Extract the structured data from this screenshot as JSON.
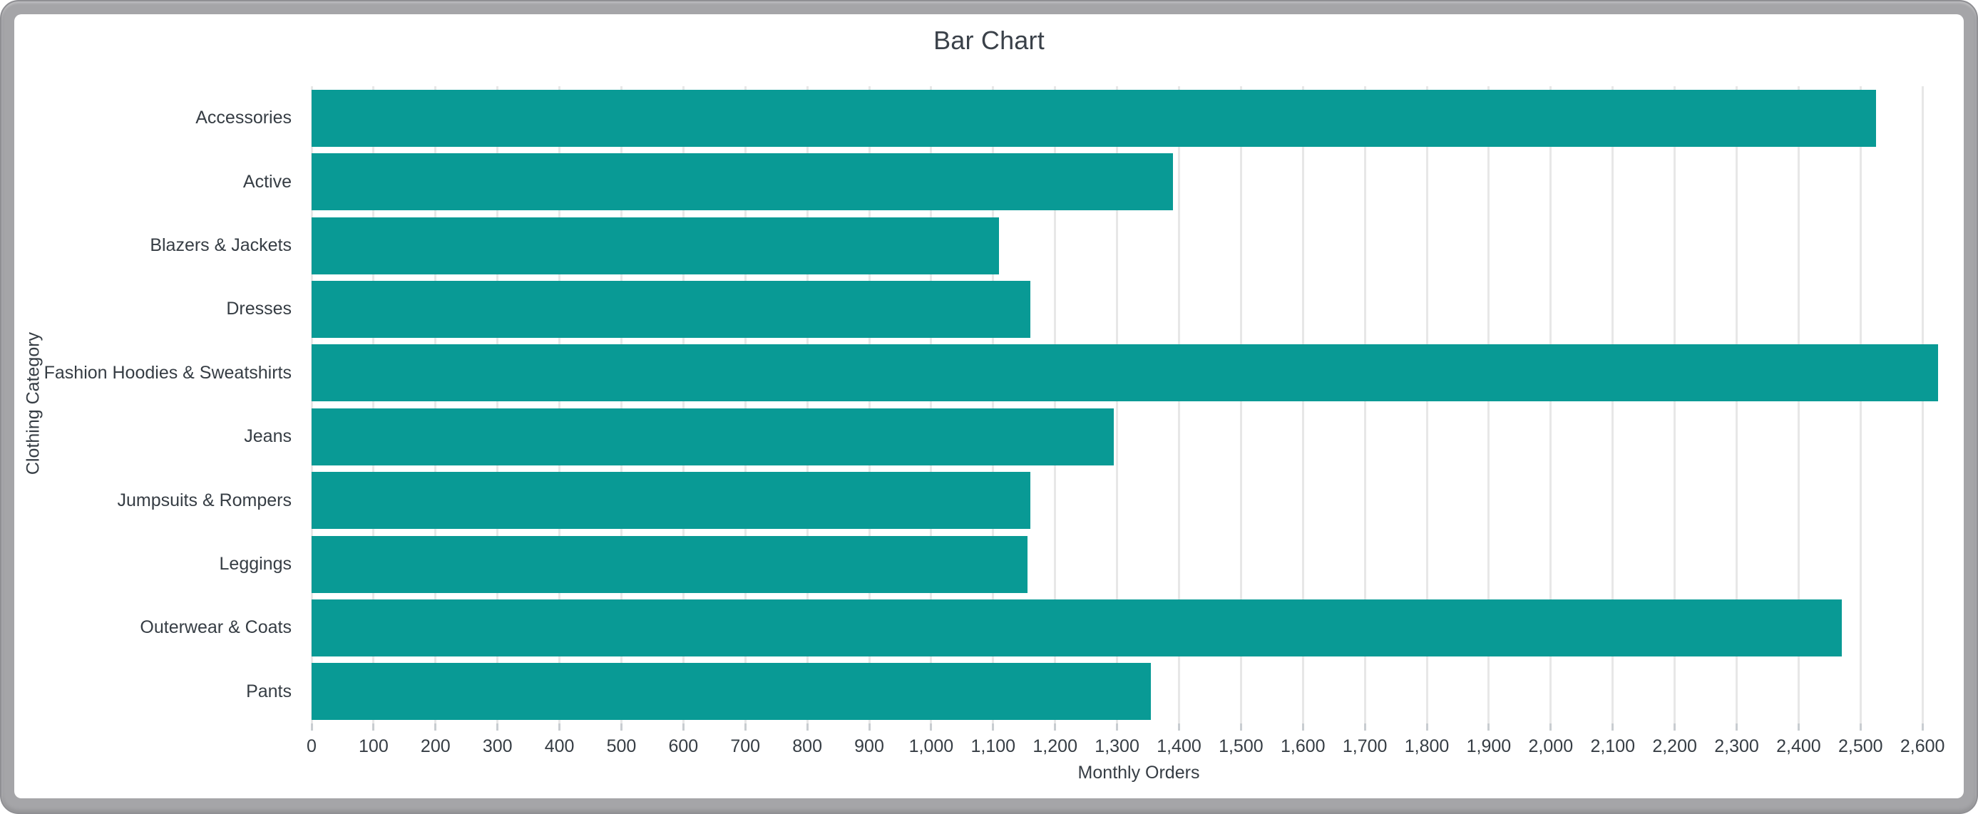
{
  "window": {
    "frame_color": "#a5a5a8",
    "card_color": "#ffffff"
  },
  "chart_data": {
    "type": "bar",
    "orientation": "horizontal",
    "title": "Bar Chart",
    "xlabel": "Monthly Orders",
    "ylabel": "Clothing Category",
    "categories": [
      "Accessories",
      "Active",
      "Blazers & Jackets",
      "Dresses",
      "Fashion Hoodies & Sweatshirts",
      "Jeans",
      "Jumpsuits & Rompers",
      "Leggings",
      "Outerwear & Coats",
      "Pants"
    ],
    "values": [
      2525,
      1390,
      1110,
      1160,
      2625,
      1295,
      1160,
      1155,
      2470,
      1355
    ],
    "xlim": [
      0,
      2670
    ],
    "xticks": [
      0,
      100,
      200,
      300,
      400,
      500,
      600,
      700,
      800,
      900,
      1000,
      1100,
      1200,
      1300,
      1400,
      1500,
      1600,
      1700,
      1800,
      1900,
      2000,
      2100,
      2200,
      2300,
      2400,
      2500,
      2600
    ],
    "grid": true,
    "legend": false,
    "bar_color": "#099a95",
    "gridline_color": "#e7e7e7",
    "text_color": "#363d44",
    "title_color": "#3a4149"
  }
}
